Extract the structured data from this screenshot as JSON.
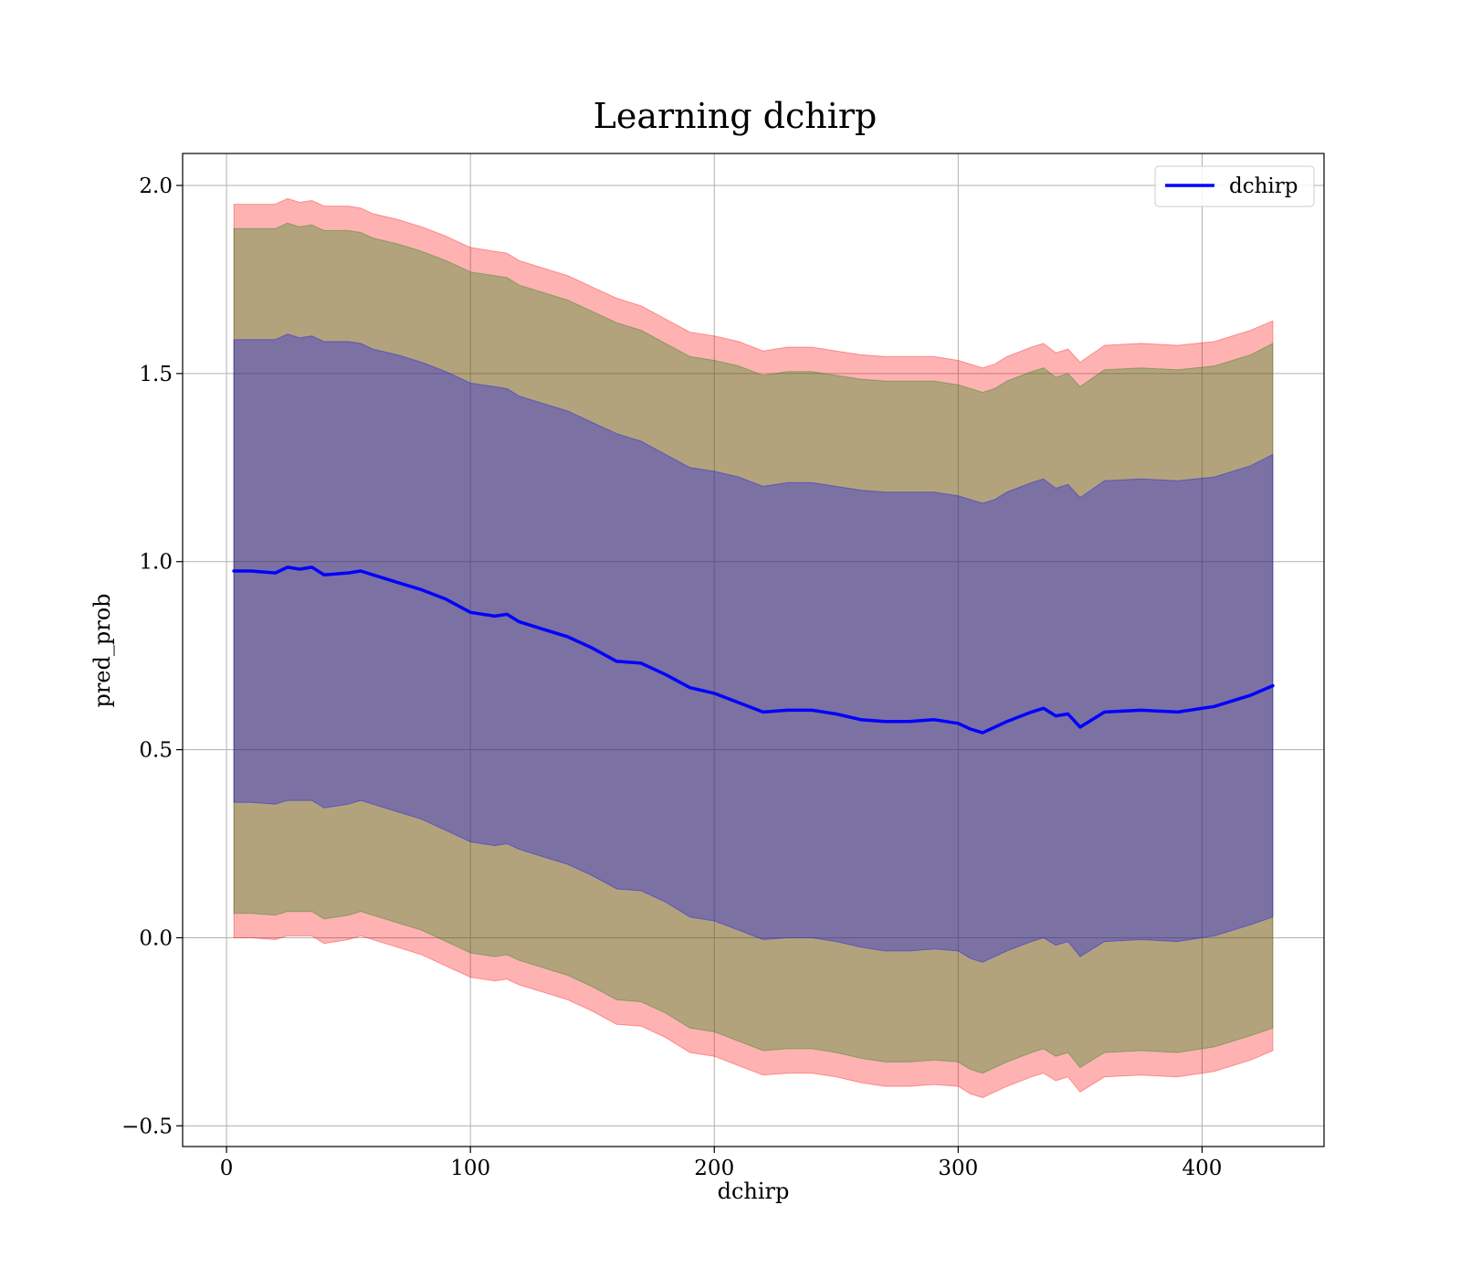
{
  "chart_data": {
    "type": "line",
    "title": "Learning dchirp",
    "xlabel": "dchirp",
    "ylabel": "pred_prob",
    "xlim": [
      -18,
      450
    ],
    "ylim": [
      -0.555,
      2.085
    ],
    "xticks": [
      0,
      100,
      200,
      300,
      400
    ],
    "yticks": [
      -0.5,
      0.0,
      0.5,
      1.0,
      1.5,
      2.0
    ],
    "xtick_labels": [
      "0",
      "100",
      "200",
      "300",
      "400"
    ],
    "ytick_labels": [
      "−0.5",
      "0.0",
      "0.5",
      "1.0",
      "1.5",
      "2.0"
    ],
    "grid": true,
    "legend_position": "upper right",
    "series": [
      {
        "name": "dchirp",
        "color": "#0000ff",
        "x": [
          3,
          10,
          20,
          25,
          30,
          35,
          40,
          50,
          55,
          60,
          70,
          80,
          90,
          100,
          110,
          115,
          120,
          130,
          140,
          150,
          160,
          170,
          180,
          190,
          200,
          210,
          220,
          230,
          240,
          250,
          260,
          270,
          280,
          290,
          300,
          305,
          310,
          315,
          320,
          330,
          335,
          340,
          345,
          350,
          360,
          375,
          390,
          405,
          420,
          429
        ],
        "y": [
          0.975,
          0.975,
          0.97,
          0.985,
          0.98,
          0.985,
          0.965,
          0.97,
          0.975,
          0.965,
          0.945,
          0.925,
          0.9,
          0.865,
          0.855,
          0.86,
          0.84,
          0.82,
          0.8,
          0.77,
          0.735,
          0.73,
          0.7,
          0.665,
          0.65,
          0.625,
          0.6,
          0.605,
          0.605,
          0.595,
          0.58,
          0.575,
          0.575,
          0.58,
          0.57,
          0.555,
          0.545,
          0.56,
          0.575,
          0.6,
          0.61,
          0.59,
          0.595,
          0.56,
          0.6,
          0.605,
          0.6,
          0.615,
          0.645,
          0.67
        ]
      }
    ],
    "bands": [
      {
        "color": "#ff0000",
        "opacity": 0.3,
        "x": [
          3,
          10,
          20,
          25,
          30,
          35,
          40,
          50,
          55,
          60,
          70,
          80,
          90,
          100,
          110,
          115,
          120,
          130,
          140,
          150,
          160,
          170,
          180,
          190,
          200,
          210,
          220,
          230,
          240,
          250,
          260,
          270,
          280,
          290,
          300,
          305,
          310,
          315,
          320,
          330,
          335,
          340,
          345,
          350,
          360,
          375,
          390,
          405,
          420,
          429
        ],
        "upper": [
          1.95,
          1.95,
          1.95,
          1.965,
          1.955,
          1.96,
          1.945,
          1.945,
          1.94,
          1.925,
          1.91,
          1.89,
          1.865,
          1.835,
          1.825,
          1.82,
          1.8,
          1.78,
          1.76,
          1.73,
          1.7,
          1.68,
          1.645,
          1.61,
          1.6,
          1.585,
          1.56,
          1.57,
          1.57,
          1.56,
          1.55,
          1.545,
          1.545,
          1.545,
          1.535,
          1.525,
          1.515,
          1.525,
          1.545,
          1.57,
          1.58,
          1.555,
          1.565,
          1.53,
          1.575,
          1.58,
          1.575,
          1.585,
          1.615,
          1.64
        ],
        "lower": [
          0.0,
          0.0,
          -0.005,
          0.005,
          0.005,
          0.005,
          -0.015,
          -0.005,
          0.005,
          -0.005,
          -0.025,
          -0.045,
          -0.075,
          -0.105,
          -0.115,
          -0.11,
          -0.125,
          -0.145,
          -0.165,
          -0.195,
          -0.23,
          -0.235,
          -0.265,
          -0.305,
          -0.315,
          -0.34,
          -0.365,
          -0.36,
          -0.36,
          -0.37,
          -0.385,
          -0.395,
          -0.395,
          -0.39,
          -0.395,
          -0.415,
          -0.425,
          -0.41,
          -0.395,
          -0.37,
          -0.36,
          -0.38,
          -0.37,
          -0.41,
          -0.37,
          -0.365,
          -0.37,
          -0.355,
          -0.325,
          -0.3
        ]
      },
      {
        "color": "#008000",
        "opacity": 0.3,
        "x": [
          3,
          10,
          20,
          25,
          30,
          35,
          40,
          50,
          55,
          60,
          70,
          80,
          90,
          100,
          110,
          115,
          120,
          130,
          140,
          150,
          160,
          170,
          180,
          190,
          200,
          210,
          220,
          230,
          240,
          250,
          260,
          270,
          280,
          290,
          300,
          305,
          310,
          315,
          320,
          330,
          335,
          340,
          345,
          350,
          360,
          375,
          390,
          405,
          420,
          429
        ],
        "upper": [
          1.885,
          1.885,
          1.885,
          1.9,
          1.89,
          1.895,
          1.88,
          1.88,
          1.875,
          1.86,
          1.845,
          1.825,
          1.8,
          1.77,
          1.76,
          1.755,
          1.735,
          1.715,
          1.695,
          1.665,
          1.635,
          1.615,
          1.58,
          1.545,
          1.535,
          1.52,
          1.495,
          1.505,
          1.505,
          1.495,
          1.485,
          1.48,
          1.48,
          1.48,
          1.47,
          1.46,
          1.45,
          1.46,
          1.48,
          1.505,
          1.515,
          1.49,
          1.5,
          1.465,
          1.51,
          1.515,
          1.51,
          1.52,
          1.55,
          1.58
        ],
        "lower": [
          0.065,
          0.065,
          0.06,
          0.07,
          0.07,
          0.07,
          0.05,
          0.06,
          0.07,
          0.06,
          0.04,
          0.02,
          -0.01,
          -0.04,
          -0.05,
          -0.045,
          -0.06,
          -0.08,
          -0.1,
          -0.13,
          -0.165,
          -0.17,
          -0.2,
          -0.24,
          -0.25,
          -0.275,
          -0.3,
          -0.295,
          -0.295,
          -0.305,
          -0.32,
          -0.33,
          -0.33,
          -0.325,
          -0.33,
          -0.35,
          -0.36,
          -0.345,
          -0.33,
          -0.305,
          -0.295,
          -0.315,
          -0.305,
          -0.345,
          -0.305,
          -0.3,
          -0.305,
          -0.29,
          -0.26,
          -0.24
        ]
      },
      {
        "color": "#0000ff",
        "opacity": 0.3,
        "x": [
          3,
          10,
          20,
          25,
          30,
          35,
          40,
          50,
          55,
          60,
          70,
          80,
          90,
          100,
          110,
          115,
          120,
          130,
          140,
          150,
          160,
          170,
          180,
          190,
          200,
          210,
          220,
          230,
          240,
          250,
          260,
          270,
          280,
          290,
          300,
          305,
          310,
          315,
          320,
          330,
          335,
          340,
          345,
          350,
          360,
          375,
          390,
          405,
          420,
          429
        ],
        "upper": [
          1.59,
          1.59,
          1.59,
          1.605,
          1.595,
          1.6,
          1.585,
          1.585,
          1.58,
          1.565,
          1.55,
          1.53,
          1.505,
          1.475,
          1.465,
          1.46,
          1.44,
          1.42,
          1.4,
          1.37,
          1.34,
          1.32,
          1.285,
          1.25,
          1.24,
          1.225,
          1.2,
          1.21,
          1.21,
          1.2,
          1.19,
          1.185,
          1.185,
          1.185,
          1.175,
          1.165,
          1.155,
          1.165,
          1.185,
          1.21,
          1.22,
          1.195,
          1.205,
          1.17,
          1.215,
          1.22,
          1.215,
          1.225,
          1.255,
          1.285
        ],
        "lower": [
          0.36,
          0.36,
          0.355,
          0.365,
          0.365,
          0.365,
          0.345,
          0.355,
          0.365,
          0.355,
          0.335,
          0.315,
          0.285,
          0.255,
          0.245,
          0.25,
          0.235,
          0.215,
          0.195,
          0.165,
          0.13,
          0.125,
          0.095,
          0.055,
          0.045,
          0.02,
          -0.005,
          0.0,
          0.0,
          -0.01,
          -0.025,
          -0.035,
          -0.035,
          -0.03,
          -0.035,
          -0.055,
          -0.065,
          -0.05,
          -0.035,
          -0.01,
          0.0,
          -0.02,
          -0.01,
          -0.05,
          -0.01,
          -0.005,
          -0.01,
          0.005,
          0.035,
          0.055
        ]
      }
    ]
  },
  "legend": {
    "label": "dchirp"
  }
}
